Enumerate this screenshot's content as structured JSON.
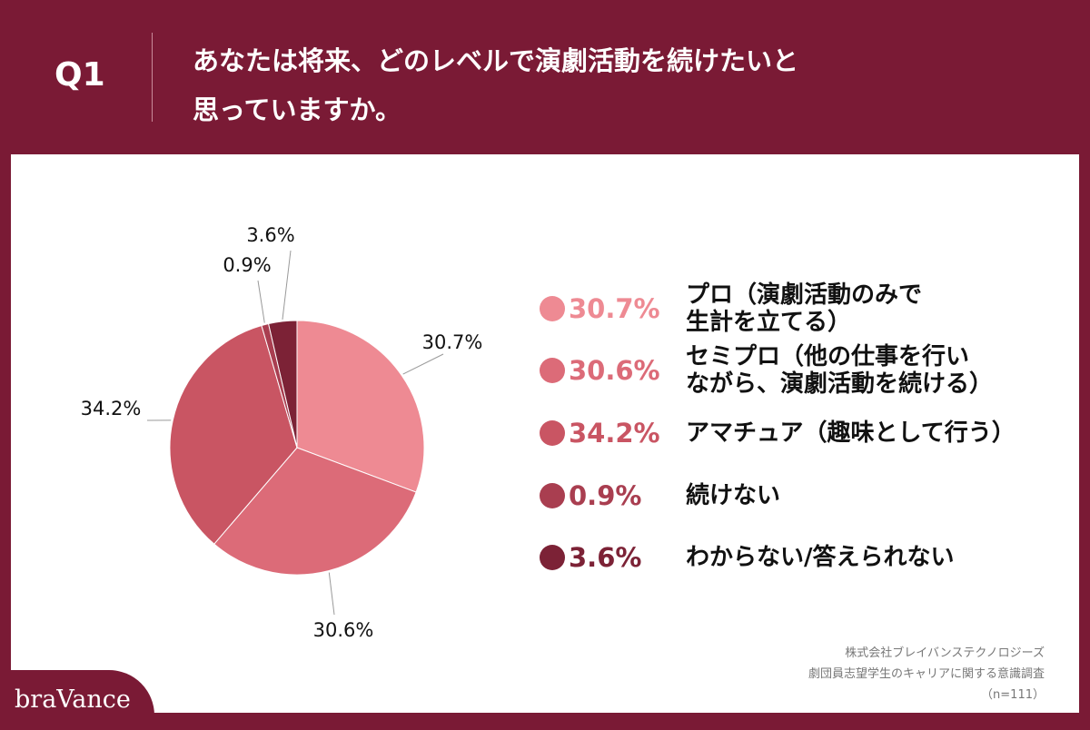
{
  "header": {
    "question": "Q1"
  },
  "chart_data": {
    "type": "pie",
    "title": "あなたは将来、どのレベルで演劇活動を続けたいと\n思っていますか。",
    "categories": [
      "プロ（演劇活動のみで\n生計を立てる）",
      "セミプロ（他の仕事を行い\nながら、演劇活動を続ける）",
      "アマチュア（趣味として行う）",
      "続けない",
      "わからない/答えられない"
    ],
    "values": [
      30.7,
      30.6,
      34.2,
      0.9,
      3.6
    ],
    "value_labels": [
      "30.7%",
      "30.6%",
      "34.2%",
      "0.9%",
      "3.6%"
    ],
    "colors": [
      "#ee8a93",
      "#dc6b78",
      "#c95563",
      "#a93e50",
      "#7c2236"
    ]
  },
  "footer": {
    "source": [
      "株式会社ブレイバンステクノロジーズ",
      "劇団員志望学生のキャリアに関する意識調査",
      "（n=111）"
    ],
    "brand": "braVance"
  }
}
